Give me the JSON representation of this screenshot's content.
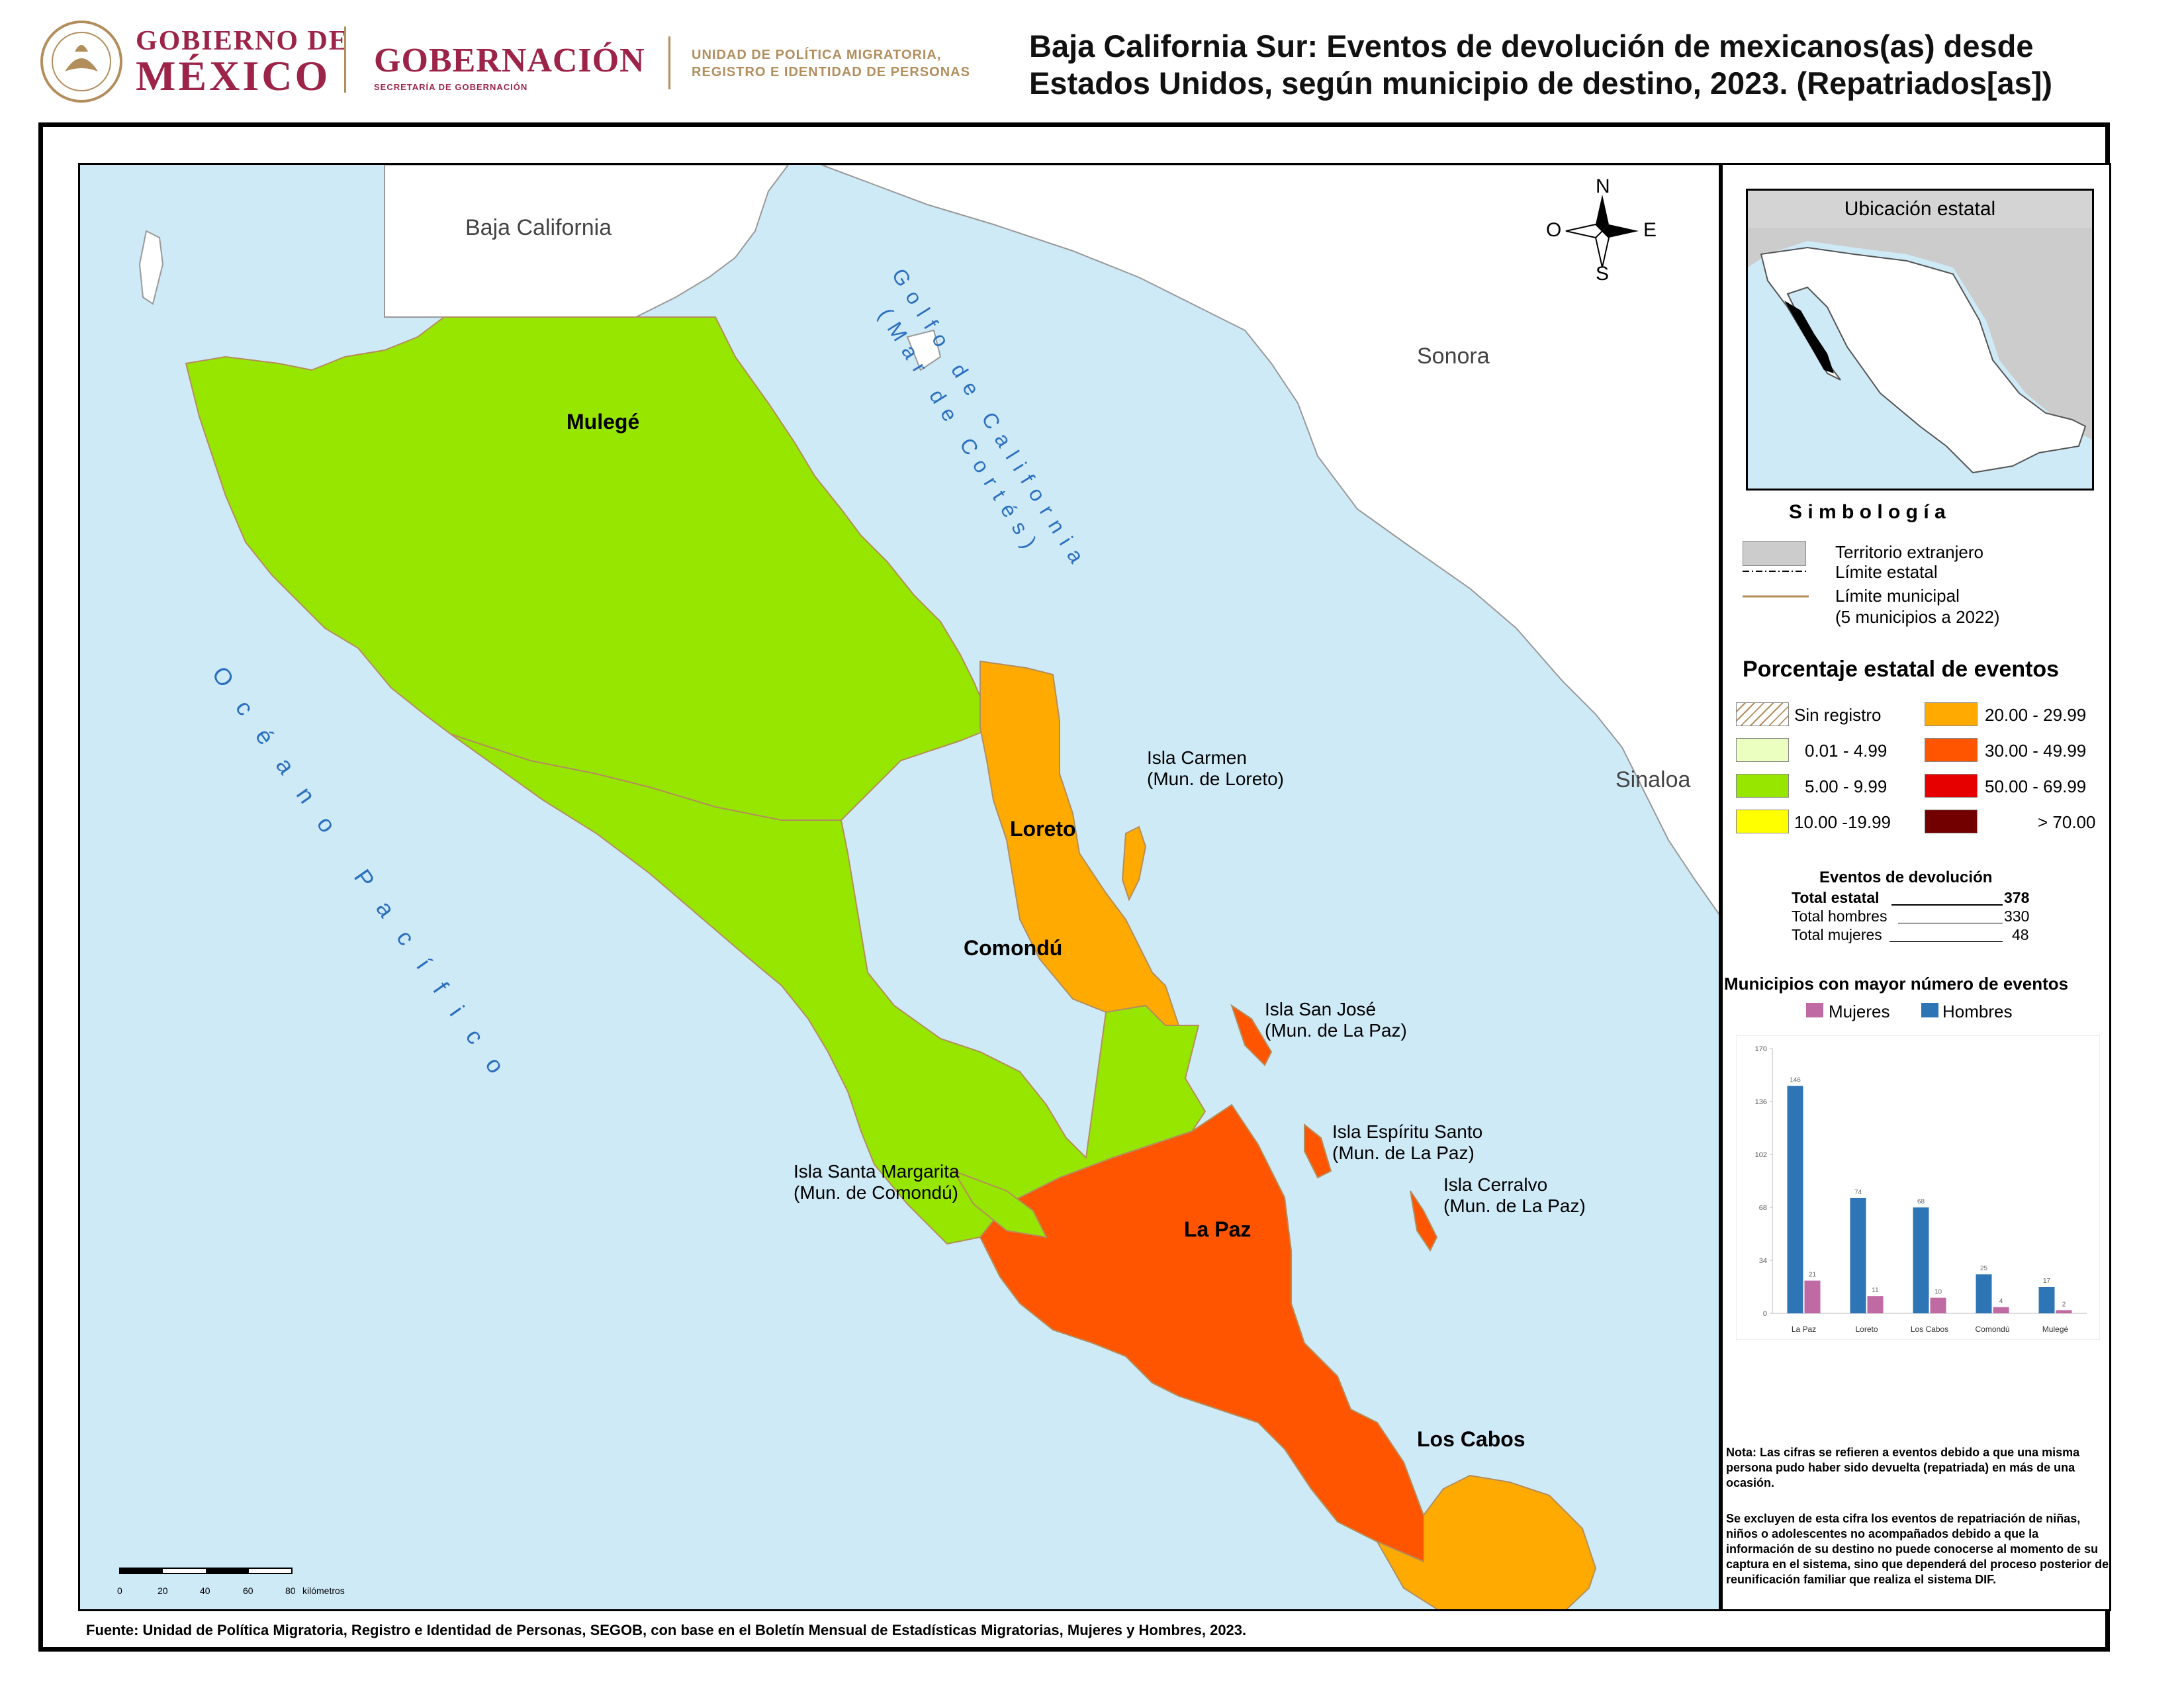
{
  "header": {
    "gob_line1": "GOBIERNO DE",
    "gob_line2": "MÉXICO",
    "gobernacion": "GOBERNACIÓN",
    "secretaria": "SECRETARÍA DE GOBERNACIÓN",
    "upm_line1": "UNIDAD DE POLÍTICA MIGRATORIA,",
    "upm_line2": "REGISTRO E IDENTIDAD DE PERSONAS",
    "title_line1": "Baja California Sur: Eventos de devolución de mexicanos(as) desde",
    "title_line2": "Estados Unidos, según municipio de destino, 2023. (Repatriados[as])"
  },
  "map": {
    "regions": {
      "baja_california": "Baja California",
      "sonora": "Sonora",
      "sinaloa": "Sinaloa"
    },
    "seas": {
      "golfo_line1": "Golfo de California",
      "golfo_line2": "(Mar de Cortés)",
      "oceano": "Océano Pacífico"
    },
    "municipalities": [
      {
        "name": "Mulegé",
        "color": "#97e600"
      },
      {
        "name": "Loreto",
        "color": "#ffaa00"
      },
      {
        "name": "Comondú",
        "color": "#97e600"
      },
      {
        "name": "La Paz",
        "color": "#ff5500"
      },
      {
        "name": "Los Cabos",
        "color": "#ffaa00"
      }
    ],
    "islands": [
      {
        "line1": "Isla Carmen",
        "line2": "(Mun. de Loreto)"
      },
      {
        "line1": "Isla San José",
        "line2": "(Mun. de La Paz)"
      },
      {
        "line1": "Isla Espíritu Santo",
        "line2": "(Mun. de La Paz)"
      },
      {
        "line1": "Isla Cerralvo",
        "line2": "(Mun. de La Paz)"
      },
      {
        "line1": "Isla Santa Margarita",
        "line2": "(Mun. de Comondú)"
      }
    ],
    "compass": {
      "n": "N",
      "s": "S",
      "e": "E",
      "o": "O"
    },
    "scale": {
      "ticks": [
        "0",
        "20",
        "40",
        "60",
        "80"
      ],
      "unit": "kilómetros"
    },
    "colors": {
      "sea": "#cfeaf7",
      "foreign": "#ffffff",
      "border": "#999999"
    }
  },
  "legend": {
    "inset_title": "Ubicación estatal",
    "simbologia": "S i m b o l o g í a",
    "symbols": [
      {
        "label": "Territorio extranjero"
      },
      {
        "label": "Límite estatal"
      },
      {
        "label": "Límite municipal",
        "label2": "(5 municipios a 2022)"
      }
    ],
    "percent_title": "Porcentaje estatal de eventos",
    "classes": [
      {
        "label": "Sin registro",
        "color": "hatch"
      },
      {
        "label": "0.01  - 4.99",
        "color": "#eaffc0"
      },
      {
        "label": "5.00  - 9.99",
        "color": "#97e600"
      },
      {
        "label": "10.00 -19.99",
        "color": "#ffff00"
      },
      {
        "label": "20.00 - 29.99",
        "color": "#ffaa00"
      },
      {
        "label": "30.00 - 49.99",
        "color": "#ff5500"
      },
      {
        "label": "50.00 - 69.99",
        "color": "#e60000"
      },
      {
        "label": "> 70.00",
        "color": "#730000"
      }
    ],
    "events_title": "Eventos de devolución",
    "totals": [
      {
        "label": "Total estatal",
        "value": "378"
      },
      {
        "label": "Total hombres",
        "value": "330"
      },
      {
        "label": "Total mujeres",
        "value": "48"
      }
    ],
    "bar_title": "Municipios con mayor número de eventos",
    "note1": "Nota: Las cifras se refieren a eventos debido a que una misma persona pudo haber sido devuelta (repatriada) en más de una ocasión.",
    "note2": "Se excluyen de esta cifra los eventos de repatriación de niñas, niños o adolescentes no acompañados debido a que la información de su destino no puede conocerse al momento de su captura en el sistema, sino que dependerá del proceso posterior de reunificación familiar que realiza el sistema DIF."
  },
  "chart_data": {
    "type": "bar",
    "categories": [
      "La Paz",
      "Loreto",
      "Los Cabos",
      "Comondú",
      "Mulegé"
    ],
    "series": [
      {
        "name": "Mujeres",
        "values": [
          21,
          11,
          10,
          4,
          2
        ],
        "color": "#c06aa3"
      },
      {
        "name": "Hombres",
        "values": [
          146,
          74,
          68,
          25,
          17
        ],
        "color": "#2e75b6"
      }
    ],
    "yticks": [
      "0",
      "34",
      "68",
      "102",
      "136",
      "170"
    ],
    "ylim": [
      0,
      170
    ],
    "legend_position": "top"
  },
  "source": "Fuente: Unidad de Política Migratoria, Registro e Identidad de Personas, SEGOB, con base en el Boletín Mensual de Estadísticas Migratorias, Mujeres y Hombres, 2023."
}
